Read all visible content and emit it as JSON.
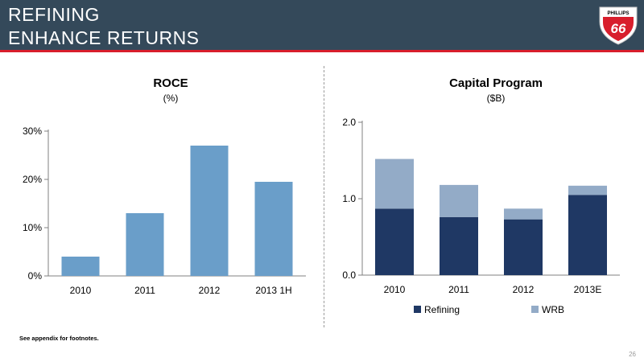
{
  "header": {
    "title_line1": "REFINING",
    "title_line2": "ENHANCE RETURNS",
    "bg_color": "#34495a",
    "accent_color": "#d81e2c"
  },
  "logo": {
    "text_top": "PHILLIPS",
    "text_main": "66"
  },
  "footnote": "See appendix for footnotes.",
  "page_number": "26",
  "chart_data": [
    {
      "type": "bar",
      "title": "ROCE",
      "subtitle": "(%)",
      "categories": [
        "2010",
        "2011",
        "2012",
        "2013 1H"
      ],
      "series": [
        {
          "values": [
            4,
            13,
            27,
            19.5
          ],
          "color": "#6a9ec9"
        }
      ],
      "ylim": [
        0,
        30
      ],
      "yticks": [
        0,
        10,
        20,
        30
      ],
      "ytick_labels": [
        "0%",
        "10%",
        "20%",
        "30%"
      ],
      "grid": false,
      "legend": "none"
    },
    {
      "type": "bar",
      "stacked": true,
      "title": "Capital Program",
      "subtitle": "($B)",
      "categories": [
        "2010",
        "2011",
        "2012",
        "2013E"
      ],
      "series": [
        {
          "name": "Refining",
          "values": [
            0.87,
            0.76,
            0.73,
            1.05
          ],
          "color": "#1f3864"
        },
        {
          "name": "WRB",
          "values": [
            0.65,
            0.42,
            0.14,
            0.12
          ],
          "color": "#93abc7"
        }
      ],
      "ylim": [
        0,
        2.0
      ],
      "yticks": [
        0,
        1,
        2
      ],
      "ytick_labels": [
        "0.0",
        "1.0",
        "2.0"
      ],
      "grid": false,
      "legend": "bottom"
    }
  ]
}
